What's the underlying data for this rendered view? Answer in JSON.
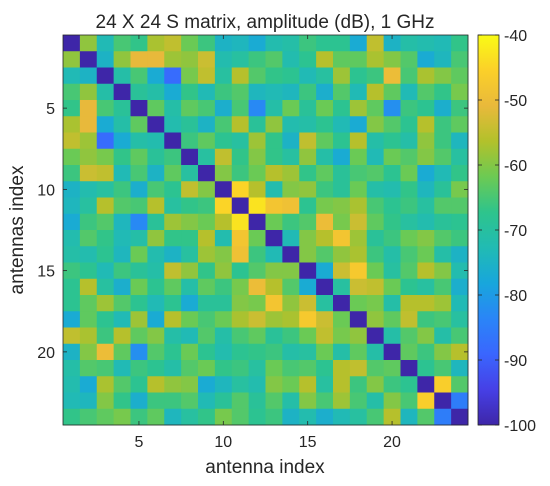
{
  "chart_data": {
    "type": "heatmap",
    "title": "24 X 24 S matrix, amplitude (dB), 1 GHz",
    "xlabel": "antenna index",
    "ylabel": "antennas index",
    "x_ticks": [
      5,
      10,
      15,
      20
    ],
    "y_ticks": [
      5,
      10,
      15,
      20
    ],
    "xlim": [
      0.5,
      24.5
    ],
    "ylim": [
      0.5,
      24.5
    ],
    "y_direction": "reversed",
    "colorbar": {
      "ticks": [
        -40,
        -50,
        -60,
        -70,
        -80,
        -90,
        -100
      ],
      "limits": [
        -100,
        -40
      ],
      "colormap": "parula",
      "colors": [
        "#3e26a8",
        "#4640e6",
        "#3a66fe",
        "#2a85f7",
        "#18a6dc",
        "#21bbb3",
        "#2ec48c",
        "#6cca53",
        "#b2c12b",
        "#e9b93b",
        "#fbd029",
        "#f9fb15"
      ]
    },
    "rows": 24,
    "cols": 24,
    "values": [
      [
        -100,
        -59,
        -73,
        -65,
        -67,
        -57,
        -55,
        -62,
        -66,
        -75,
        -74,
        -77,
        -72,
        -71,
        -66,
        -68,
        -68,
        -77,
        -55,
        -75,
        -71,
        -72,
        -73,
        -67
      ],
      [
        -59,
        -100,
        -75,
        -59,
        -51,
        -51,
        -58,
        -59,
        -54,
        -72,
        -70,
        -66,
        -64,
        -72,
        -68,
        -56,
        -63,
        -63,
        -57,
        -60,
        -64,
        -77,
        -74,
        -65
      ],
      [
        -73,
        -75,
        -100,
        -71,
        -65,
        -77,
        -88,
        -61,
        -55,
        -70,
        -56,
        -64,
        -67,
        -68,
        -73,
        -70,
        -58,
        -68,
        -66,
        -50,
        -65,
        -57,
        -60,
        -63
      ],
      [
        -65,
        -59,
        -71,
        -100,
        -69,
        -71,
        -77,
        -67,
        -73,
        -66,
        -64,
        -74,
        -73,
        -74,
        -66,
        -76,
        -64,
        -73,
        -56,
        -63,
        -73,
        -64,
        -67,
        -61
      ],
      [
        -67,
        -51,
        -65,
        -69,
        -100,
        -63,
        -71,
        -63,
        -65,
        -76,
        -65,
        -83,
        -71,
        -62,
        -69,
        -62,
        -68,
        -58,
        -63,
        -82,
        -66,
        -68,
        -76,
        -66
      ],
      [
        -57,
        -51,
        -77,
        -71,
        -63,
        -100,
        -72,
        -69,
        -75,
        -65,
        -56,
        -69,
        -59,
        -72,
        -71,
        -68,
        -73,
        -77,
        -60,
        -64,
        -68,
        -56,
        -66,
        -63
      ],
      [
        -55,
        -58,
        -88,
        -77,
        -71,
        -72,
        -100,
        -66,
        -63,
        -68,
        -70,
        -58,
        -67,
        -75,
        -55,
        -63,
        -68,
        -56,
        -71,
        -68,
        -71,
        -59,
        -66,
        -74
      ],
      [
        -62,
        -59,
        -61,
        -67,
        -63,
        -69,
        -66,
        -100,
        -70,
        -55,
        -67,
        -60,
        -67,
        -70,
        -59,
        -71,
        -77,
        -62,
        -73,
        -62,
        -64,
        -60,
        -64,
        -70
      ],
      [
        -66,
        -54,
        -55,
        -73,
        -65,
        -75,
        -63,
        -70,
        -100,
        -60,
        -66,
        -62,
        -56,
        -58,
        -67,
        -63,
        -69,
        -65,
        -64,
        -68,
        -62,
        -77,
        -73,
        -67
      ],
      [
        -75,
        -72,
        -70,
        -66,
        -76,
        -65,
        -68,
        -55,
        -60,
        -100,
        -45,
        -56,
        -72,
        -60,
        -59,
        -66,
        -69,
        -62,
        -71,
        -72,
        -67,
        -74,
        -69,
        -61
      ],
      [
        -74,
        -70,
        -56,
        -64,
        -65,
        -56,
        -70,
        -67,
        -66,
        -45,
        -100,
        -43,
        -48,
        -49,
        -68,
        -61,
        -60,
        -57,
        -65,
        -68,
        -66,
        -70,
        -64,
        -64
      ],
      [
        -77,
        -66,
        -64,
        -74,
        -83,
        -69,
        -58,
        -60,
        -62,
        -56,
        -43,
        -100,
        -62,
        -66,
        -64,
        -50,
        -61,
        -54,
        -63,
        -67,
        -70,
        -72,
        -69,
        -68
      ],
      [
        -72,
        -64,
        -67,
        -73,
        -71,
        -59,
        -67,
        -67,
        -56,
        -72,
        -48,
        -62,
        -100,
        -73,
        -60,
        -56,
        -48,
        -58,
        -69,
        -66,
        -62,
        -60,
        -64,
        -66
      ],
      [
        -71,
        -72,
        -68,
        -74,
        -62,
        -72,
        -75,
        -70,
        -58,
        -60,
        -49,
        -66,
        -73,
        -100,
        -60,
        -64,
        -59,
        -57,
        -66,
        -71,
        -65,
        -62,
        -71,
        -75
      ],
      [
        -66,
        -68,
        -73,
        -66,
        -69,
        -71,
        -55,
        -59,
        -67,
        -59,
        -68,
        -64,
        -60,
        -60,
        -100,
        -77,
        -54,
        -47,
        -62,
        -70,
        -64,
        -56,
        -60,
        -72
      ],
      [
        -68,
        -56,
        -70,
        -76,
        -62,
        -68,
        -63,
        -71,
        -63,
        -66,
        -61,
        -50,
        -56,
        -64,
        -77,
        -100,
        -70,
        -54,
        -55,
        -62,
        -68,
        -70,
        -65,
        -76
      ],
      [
        -68,
        -63,
        -58,
        -64,
        -68,
        -73,
        -68,
        -77,
        -69,
        -69,
        -60,
        -61,
        -48,
        -59,
        -54,
        -70,
        -100,
        -62,
        -61,
        -71,
        -56,
        -56,
        -58,
        -73
      ],
      [
        -77,
        -63,
        -68,
        -73,
        -58,
        -77,
        -56,
        -62,
        -65,
        -62,
        -57,
        -54,
        -58,
        -57,
        -47,
        -54,
        -62,
        -100,
        -59,
        -63,
        -55,
        -66,
        -65,
        -70
      ],
      [
        -55,
        -57,
        -66,
        -56,
        -63,
        -60,
        -71,
        -73,
        -64,
        -71,
        -65,
        -63,
        -69,
        -66,
        -62,
        -55,
        -61,
        -59,
        -100,
        -71,
        -64,
        -60,
        -71,
        -65
      ],
      [
        -75,
        -60,
        -50,
        -63,
        -82,
        -64,
        -68,
        -62,
        -68,
        -72,
        -68,
        -67,
        -66,
        -71,
        -70,
        -62,
        -71,
        -63,
        -71,
        -100,
        -63,
        -66,
        -60,
        -56
      ],
      [
        -71,
        -64,
        -65,
        -73,
        -66,
        -68,
        -71,
        -64,
        -62,
        -67,
        -66,
        -70,
        -62,
        -65,
        -64,
        -68,
        -56,
        -55,
        -64,
        -63,
        -100,
        -68,
        -65,
        -74
      ],
      [
        -72,
        -77,
        -57,
        -64,
        -68,
        -56,
        -59,
        -60,
        -77,
        -74,
        -70,
        -72,
        -60,
        -62,
        -56,
        -70,
        -56,
        -66,
        -60,
        -66,
        -68,
        -100,
        -46,
        -64
      ],
      [
        -73,
        -74,
        -60,
        -67,
        -76,
        -66,
        -66,
        -64,
        -73,
        -69,
        -64,
        -69,
        -64,
        -71,
        -60,
        -65,
        -58,
        -65,
        -71,
        -60,
        -65,
        -46,
        -100,
        -85
      ],
      [
        -67,
        -65,
        -63,
        -61,
        -66,
        -63,
        -74,
        -70,
        -67,
        -61,
        -64,
        -68,
        -66,
        -75,
        -72,
        -76,
        -73,
        -70,
        -65,
        -56,
        -74,
        -64,
        -85,
        -100
      ]
    ]
  }
}
